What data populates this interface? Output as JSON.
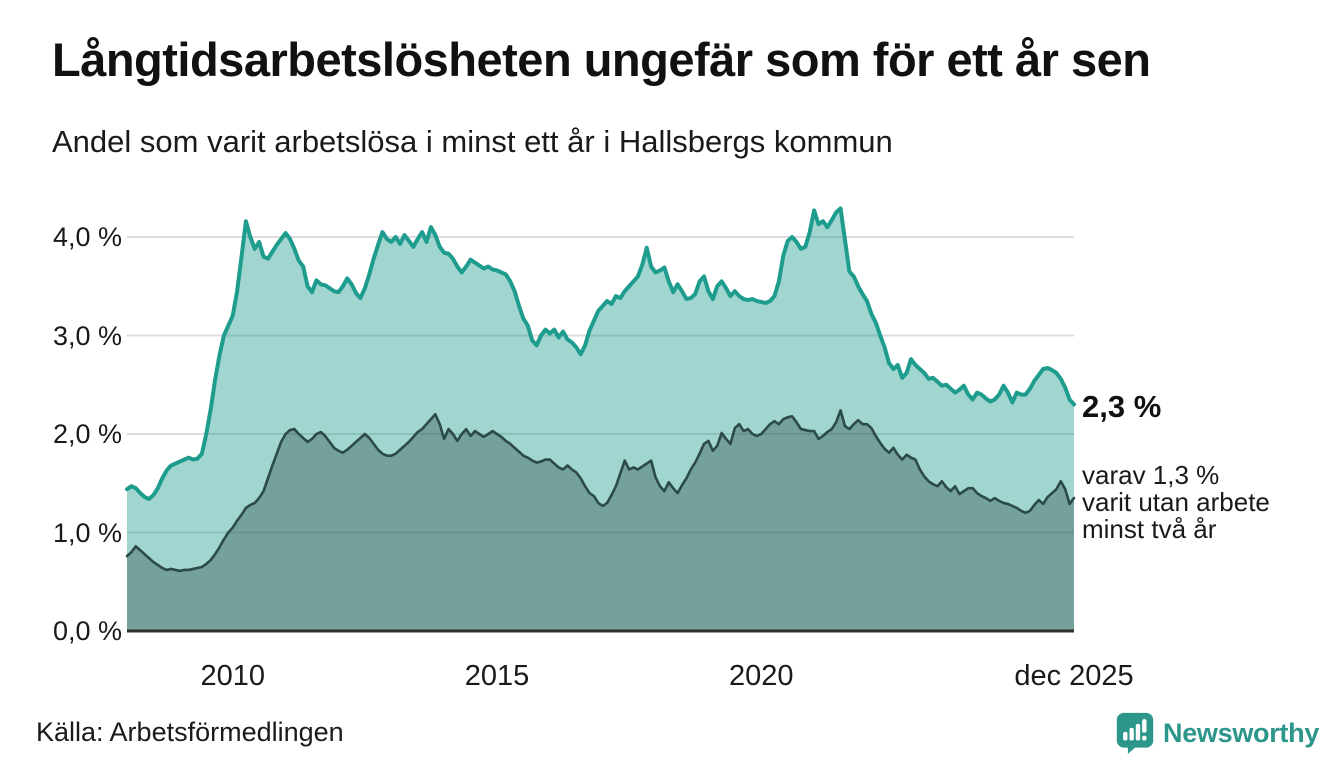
{
  "header": {
    "title": "Långtidsarbetslösheten ungefär som för ett år sen",
    "subtitle": "Andel som varit arbetslösa i minst ett år i Hallsbergs kommun"
  },
  "annotations": {
    "end_total": "2,3 %",
    "end_two_year_lines": [
      "varav 1,3 %",
      "varit utan arbete",
      "minst två år"
    ]
  },
  "footer": {
    "source": "Källa: Arbetsförmedlingen",
    "brand": "Newsworthy"
  },
  "colors": {
    "total_line": "#1E9C8E",
    "total_fill": "rgba(31,154,142,0.42)",
    "two_year_line": "#2C4B46",
    "two_year_fill": "rgba(44,75,70,0.38)",
    "gridline": "#dcdcdc",
    "axis_line": "#2f2f2f",
    "brand_teal": "#2D968B",
    "text": "#1a1a1a"
  },
  "chart_data": {
    "type": "area",
    "title": "Långtidsarbetslösheten ungefär som för ett år sen",
    "subtitle": "Andel som varit arbetslösa i minst ett år i Hallsbergs kommun",
    "x_unit": "month",
    "x_start": "2008-01",
    "x_end": "2025-12",
    "ylabel": "",
    "ylim": [
      0,
      4.43
    ],
    "grid": "horizontal",
    "yticks": [
      {
        "label": "0,0 %",
        "value": 0
      },
      {
        "label": "1,0 %",
        "value": 1
      },
      {
        "label": "2,0 %",
        "value": 2
      },
      {
        "label": "3,0 %",
        "value": 3
      },
      {
        "label": "4,0 %",
        "value": 4
      }
    ],
    "xticks": [
      {
        "label": "2010",
        "month": 24
      },
      {
        "label": "2015",
        "month": 84
      },
      {
        "label": "2020",
        "month": 144
      },
      {
        "label": "dec 2025",
        "month": 215
      }
    ],
    "series": [
      {
        "name": "Andel arbetslösa minst ett år",
        "end_label": "2,3 %",
        "values": [
          1.44,
          1.47,
          1.45,
          1.4,
          1.36,
          1.34,
          1.38,
          1.45,
          1.55,
          1.63,
          1.68,
          1.7,
          1.72,
          1.74,
          1.76,
          1.74,
          1.75,
          1.8,
          2.0,
          2.25,
          2.55,
          2.8,
          3.0,
          3.1,
          3.2,
          3.45,
          3.8,
          4.16,
          4.0,
          3.88,
          3.95,
          3.8,
          3.78,
          3.85,
          3.92,
          3.98,
          4.04,
          3.98,
          3.88,
          3.76,
          3.7,
          3.5,
          3.44,
          3.56,
          3.52,
          3.51,
          3.48,
          3.45,
          3.44,
          3.5,
          3.58,
          3.52,
          3.43,
          3.38,
          3.48,
          3.62,
          3.78,
          3.92,
          4.05,
          3.98,
          3.95,
          4.0,
          3.93,
          4.02,
          3.96,
          3.9,
          3.98,
          4.05,
          3.95,
          4.1,
          4.02,
          3.9,
          3.84,
          3.83,
          3.78,
          3.7,
          3.64,
          3.7,
          3.77,
          3.74,
          3.71,
          3.68,
          3.7,
          3.67,
          3.66,
          3.64,
          3.62,
          3.55,
          3.45,
          3.3,
          3.17,
          3.1,
          2.95,
          2.9,
          3.0,
          3.06,
          3.02,
          3.06,
          2.98,
          3.04,
          2.96,
          2.93,
          2.88,
          2.81,
          2.9,
          3.05,
          3.15,
          3.25,
          3.3,
          3.35,
          3.32,
          3.4,
          3.38,
          3.45,
          3.5,
          3.55,
          3.6,
          3.72,
          3.89,
          3.7,
          3.64,
          3.66,
          3.69,
          3.55,
          3.44,
          3.52,
          3.45,
          3.37,
          3.38,
          3.42,
          3.55,
          3.6,
          3.45,
          3.37,
          3.5,
          3.55,
          3.48,
          3.4,
          3.45,
          3.4,
          3.37,
          3.36,
          3.37,
          3.35,
          3.34,
          3.33,
          3.35,
          3.4,
          3.55,
          3.81,
          3.96,
          4.0,
          3.95,
          3.88,
          3.9,
          4.05,
          4.27,
          4.13,
          4.16,
          4.1,
          4.17,
          4.25,
          4.29,
          3.97,
          3.65,
          3.6,
          3.5,
          3.42,
          3.35,
          3.22,
          3.13,
          3.0,
          2.88,
          2.72,
          2.66,
          2.7,
          2.57,
          2.62,
          2.76,
          2.7,
          2.66,
          2.62,
          2.56,
          2.57,
          2.53,
          2.49,
          2.5,
          2.46,
          2.42,
          2.45,
          2.49,
          2.4,
          2.35,
          2.42,
          2.4,
          2.36,
          2.33,
          2.35,
          2.4,
          2.49,
          2.42,
          2.32,
          2.42,
          2.4,
          2.4,
          2.46,
          2.54,
          2.6,
          2.66,
          2.67,
          2.65,
          2.62,
          2.56,
          2.47,
          2.35,
          2.3
        ]
      },
      {
        "name": "varav utan arbete minst två år",
        "end_label": "1,3 %",
        "values": [
          0.76,
          0.8,
          0.86,
          0.82,
          0.78,
          0.74,
          0.7,
          0.67,
          0.64,
          0.62,
          0.63,
          0.62,
          0.61,
          0.62,
          0.62,
          0.63,
          0.64,
          0.65,
          0.68,
          0.72,
          0.78,
          0.85,
          0.93,
          1.0,
          1.05,
          1.12,
          1.18,
          1.25,
          1.28,
          1.3,
          1.35,
          1.42,
          1.55,
          1.68,
          1.8,
          1.92,
          2.0,
          2.04,
          2.05,
          2.0,
          1.96,
          1.92,
          1.95,
          2.0,
          2.02,
          1.98,
          1.92,
          1.86,
          1.83,
          1.81,
          1.84,
          1.88,
          1.92,
          1.96,
          2.0,
          1.96,
          1.9,
          1.84,
          1.8,
          1.78,
          1.78,
          1.8,
          1.84,
          1.88,
          1.92,
          1.97,
          2.02,
          2.05,
          2.1,
          2.15,
          2.2,
          2.1,
          1.95,
          2.05,
          2.0,
          1.93,
          2.0,
          2.05,
          1.98,
          2.03,
          2.0,
          1.97,
          2.0,
          2.03,
          2.0,
          1.97,
          1.93,
          1.9,
          1.86,
          1.82,
          1.78,
          1.76,
          1.73,
          1.71,
          1.72,
          1.74,
          1.74,
          1.7,
          1.66,
          1.64,
          1.68,
          1.64,
          1.61,
          1.55,
          1.47,
          1.4,
          1.37,
          1.3,
          1.27,
          1.3,
          1.38,
          1.47,
          1.6,
          1.73,
          1.64,
          1.66,
          1.64,
          1.67,
          1.7,
          1.73,
          1.56,
          1.47,
          1.42,
          1.51,
          1.45,
          1.4,
          1.48,
          1.55,
          1.64,
          1.71,
          1.8,
          1.9,
          1.93,
          1.83,
          1.88,
          2.01,
          1.95,
          1.9,
          2.06,
          2.1,
          2.03,
          2.05,
          2.0,
          1.98,
          2.0,
          2.05,
          2.1,
          2.13,
          2.1,
          2.15,
          2.17,
          2.18,
          2.12,
          2.05,
          2.04,
          2.03,
          2.03,
          1.95,
          1.98,
          2.02,
          2.05,
          2.12,
          2.24,
          2.08,
          2.05,
          2.1,
          2.14,
          2.1,
          2.1,
          2.06,
          1.98,
          1.91,
          1.85,
          1.81,
          1.86,
          1.79,
          1.74,
          1.79,
          1.76,
          1.74,
          1.64,
          1.57,
          1.52,
          1.49,
          1.47,
          1.52,
          1.46,
          1.42,
          1.47,
          1.39,
          1.42,
          1.45,
          1.45,
          1.4,
          1.37,
          1.35,
          1.32,
          1.35,
          1.32,
          1.3,
          1.29,
          1.27,
          1.25,
          1.22,
          1.2,
          1.22,
          1.28,
          1.33,
          1.29,
          1.36,
          1.4,
          1.44,
          1.52,
          1.44,
          1.29,
          1.35
        ]
      }
    ]
  }
}
